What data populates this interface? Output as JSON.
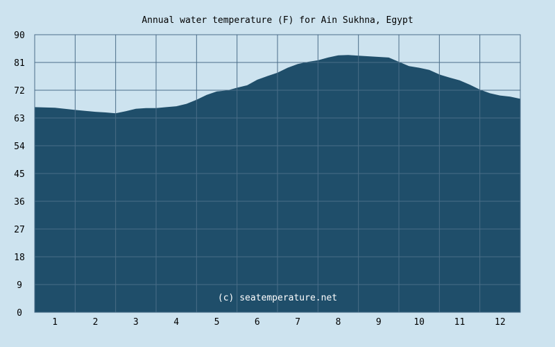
{
  "colors": {
    "background": "#cde3ef",
    "plot_background": "#cde3ef",
    "area_fill": "#1f4e6a",
    "grid": "#4a6d88",
    "text": "#000000",
    "watermark": "#ffffff"
  },
  "watermark": "(c) seatemperature.net",
  "chart_data": {
    "type": "area",
    "title": "Annual water temperature (F) for Ain Sukhna, Egypt",
    "xlabel": "",
    "ylabel": "",
    "grid": true,
    "legend": "none",
    "ylim": [
      0,
      90
    ],
    "xlim": [
      0.5,
      12.5
    ],
    "yticks": [
      0,
      9,
      18,
      27,
      36,
      45,
      54,
      63,
      72,
      81,
      90
    ],
    "xticks": [
      1,
      2,
      3,
      4,
      5,
      6,
      7,
      8,
      9,
      10,
      11,
      12
    ],
    "series": [
      {
        "x": [
          0.5,
          1.0,
          1.5,
          2.0,
          2.25,
          2.5,
          2.75,
          3.0,
          3.25,
          3.5,
          3.75,
          4.0,
          4.25,
          4.5,
          4.75,
          5.0,
          5.25,
          5.5,
          5.75,
          6.0,
          6.25,
          6.5,
          6.75,
          7.0,
          7.25,
          7.5,
          7.75,
          8.0,
          8.25,
          8.5,
          8.75,
          9.0,
          9.25,
          9.5,
          9.75,
          10.0,
          10.25,
          10.5,
          10.75,
          11.0,
          11.25,
          11.5,
          11.75,
          12.0,
          12.25,
          12.5
        ],
        "y": [
          66.5,
          66.3,
          65.6,
          65.0,
          64.8,
          64.5,
          65.2,
          66.0,
          66.2,
          66.2,
          66.5,
          66.8,
          67.6,
          68.9,
          70.5,
          71.6,
          71.9,
          72.8,
          73.6,
          75.4,
          76.6,
          77.7,
          79.3,
          80.5,
          81.2,
          81.7,
          82.6,
          83.3,
          83.4,
          83.2,
          83.0,
          82.8,
          82.6,
          81.2,
          79.8,
          79.3,
          78.6,
          77.1,
          76.1,
          75.2,
          73.8,
          72.2,
          71.0,
          70.3,
          69.9,
          69.2
        ]
      }
    ]
  }
}
